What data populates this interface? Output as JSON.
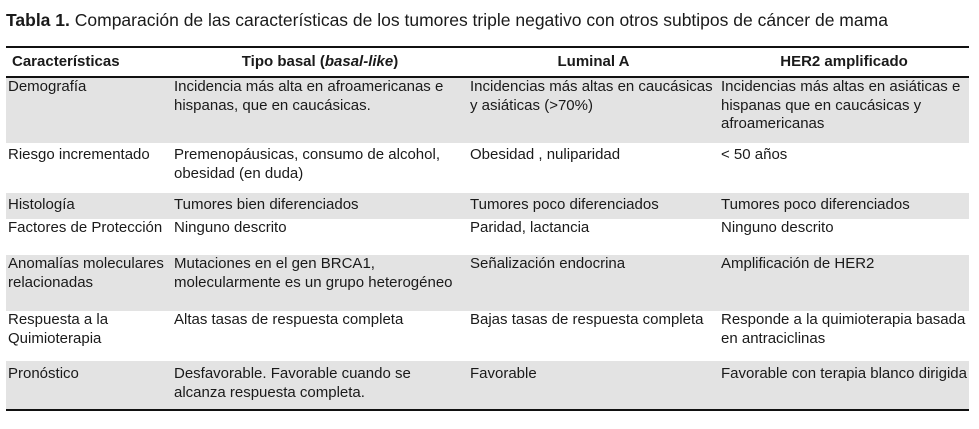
{
  "caption": {
    "label": "Tabla 1.",
    "text": "Comparación de las características de los tumores triple negativo con otros subtipos de cáncer de mama"
  },
  "table": {
    "headers": {
      "col1": "Características",
      "col2_prefix": "Tipo basal (",
      "col2_italic": "basal-like",
      "col2_suffix": ")",
      "col3": "Luminal A",
      "col4": "HER2 amplificado"
    },
    "rows": [
      {
        "caracteristica": "Demografía",
        "basal": "Incidencia más alta en afroamericanas e hispanas, que en caucásicas.",
        "luminal": "Incidencias más altas en caucásicas y asiáticas (>70%)",
        "her2": "Incidencias más altas en asiáticas e hispanas que en caucásicas y afroamericanas"
      },
      {
        "caracteristica": "Riesgo incrementado",
        "basal": "Premenopáusicas, consumo de alcohol, obesidad (en duda)",
        "luminal": "Obesidad , nuliparidad",
        "her2": "< 50 años"
      },
      {
        "caracteristica": "Histología",
        "basal": "Tumores bien diferenciados",
        "luminal": "Tumores poco diferenciados",
        "her2": "Tumores poco diferenciados"
      },
      {
        "caracteristica": "Factores de Protección",
        "basal": "Ninguno descrito",
        "luminal": "Paridad, lactancia",
        "her2": "Ninguno descrito"
      },
      {
        "caracteristica": "Anomalías moleculares relacionadas",
        "basal": "Mutaciones en el gen BRCA1, molecularmente es un grupo heterogéneo",
        "luminal": "Señalización endocrina",
        "her2": "Amplificación de HER2"
      },
      {
        "caracteristica": "Respuesta a la Quimioterapia",
        "basal": "Altas tasas de respuesta completa",
        "luminal": "Bajas tasas de respuesta completa",
        "her2": "Responde a la quimioterapia basada en antraciclinas"
      },
      {
        "caracteristica": "Pronóstico",
        "basal": "Desfavorable. Favorable cuando se alcanza respuesta completa.",
        "luminal": "Favorable",
        "her2": "Favorable con terapia blanco dirigida"
      }
    ]
  },
  "colors": {
    "shaded_row": "#e3e3e3",
    "rule": "#111111",
    "text": "#1a1a1a"
  }
}
